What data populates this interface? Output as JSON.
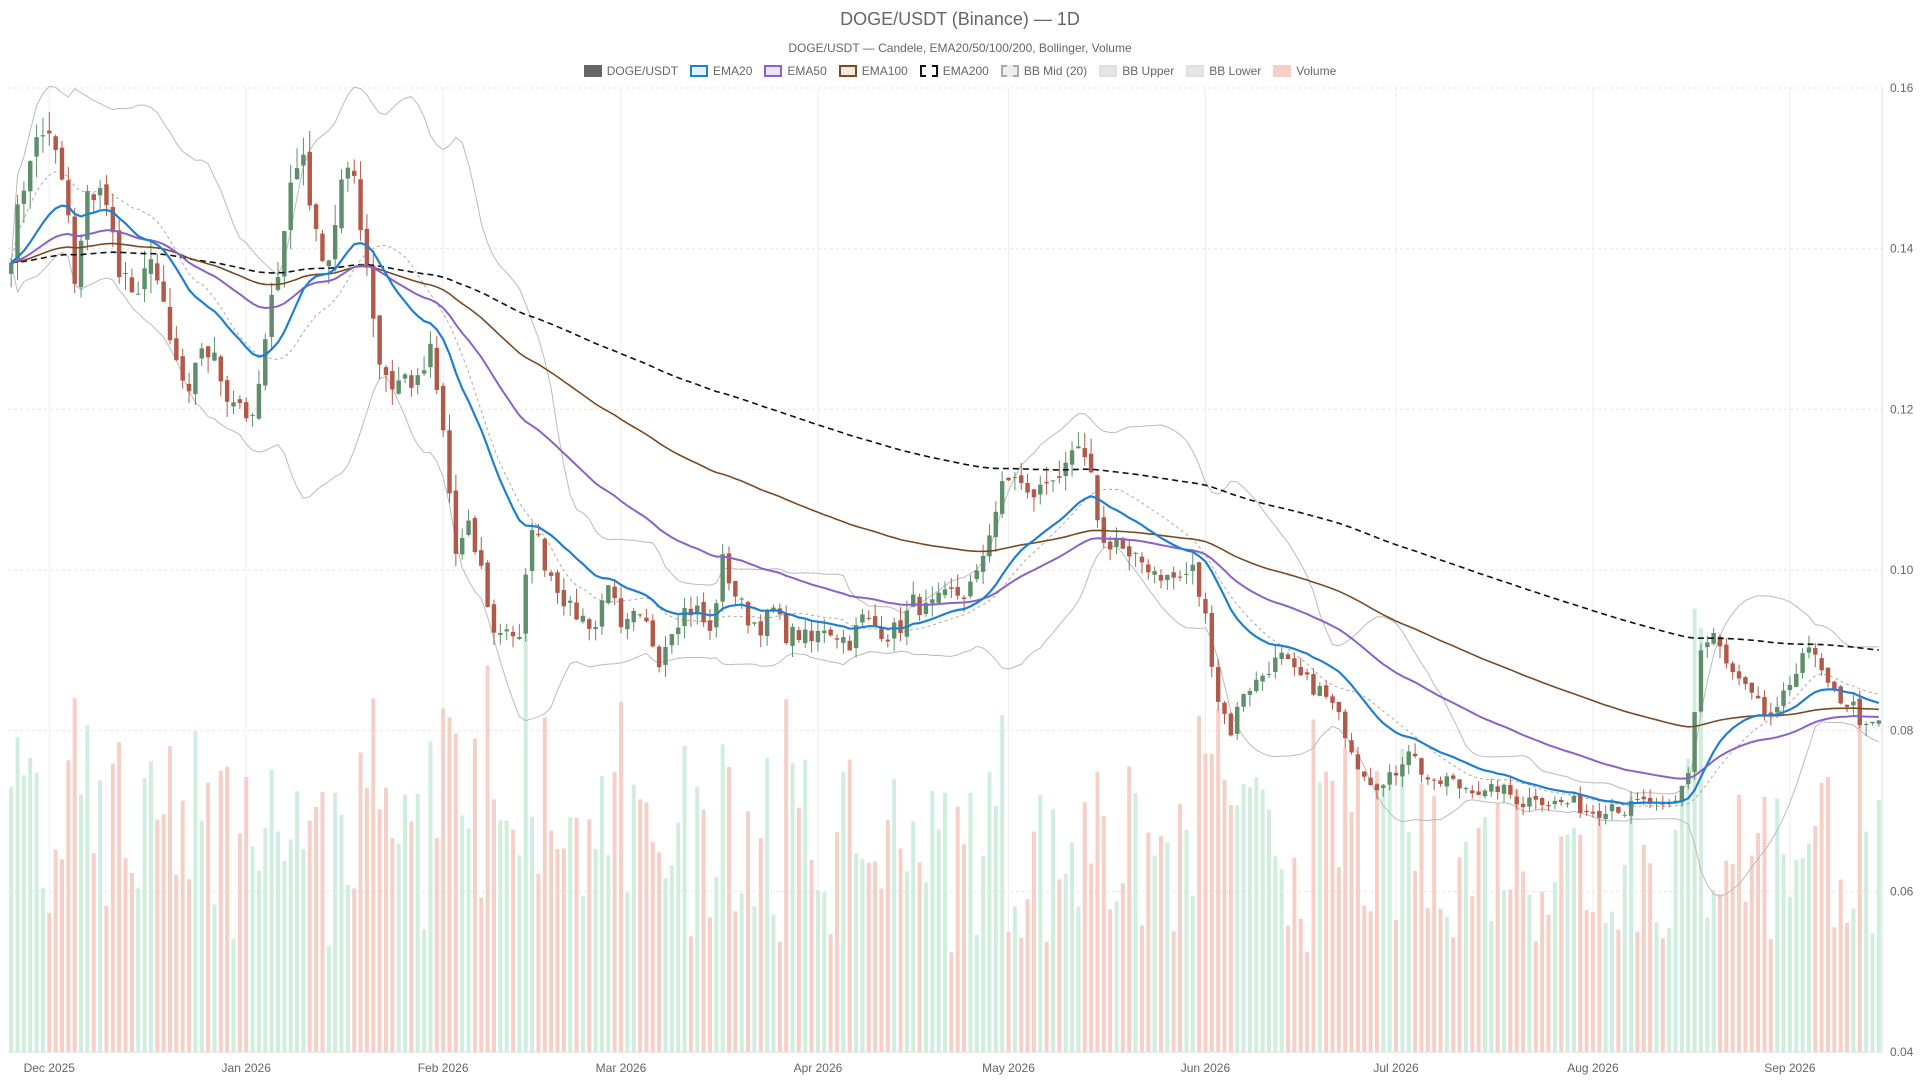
{
  "chart_data": {
    "type": "candlestick",
    "title": "DOGE/USDT (Binance) — 1D",
    "subtitle": "DOGE/USDT — Candele, EMA20/50/100/200, Bollinger, Volume",
    "legend": [
      {
        "label": "DOGE/USDT",
        "fill": "#666666",
        "border": "#666666",
        "dashed": false
      },
      {
        "label": "EMA20",
        "fill": "#e3f1fb",
        "border": "#1f7fd1",
        "dashed": false
      },
      {
        "label": "EMA50",
        "fill": "#ece3f7",
        "border": "#8a63c9",
        "dashed": false
      },
      {
        "label": "EMA100",
        "fill": "#f3e9e0",
        "border": "#7a4a23",
        "dashed": false
      },
      {
        "label": "EMA200",
        "fill": "#ffffff",
        "border": "#111111",
        "dashed": true
      },
      {
        "label": "BB Mid (20)",
        "fill": "#eeeeee",
        "border": "#aaaaaa",
        "dashed": true
      },
      {
        "label": "BB Upper",
        "fill": "#e6e6e6",
        "border": "#e0e0e0",
        "dashed": false
      },
      {
        "label": "BB Lower",
        "fill": "#e6e6e6",
        "border": "#e0e0e0",
        "dashed": false
      },
      {
        "label": "Volume",
        "fill": "#f6cfc6",
        "border": "#f6cfc6",
        "dashed": false
      }
    ],
    "y_axis": {
      "min": 0.04,
      "max": 0.16,
      "ticks": [
        "0.16",
        "0.14",
        "0.12",
        "0.10",
        "0.08",
        "0.06",
        "0.04"
      ],
      "position": "right"
    },
    "x_axis": {
      "ticks": [
        {
          "label": "Dec 2025",
          "day": 6
        },
        {
          "label": "Jan 2026",
          "day": 37
        },
        {
          "label": "Feb 2026",
          "day": 68
        },
        {
          "label": "Mar 2026",
          "day": 96
        },
        {
          "label": "Apr 2026",
          "day": 127
        },
        {
          "label": "May 2026",
          "day": 157
        },
        {
          "label": "Jun 2026",
          "day": 188
        },
        {
          "label": "Jul 2026",
          "day": 218
        },
        {
          "label": "Aug 2026",
          "day": 249
        },
        {
          "label": "Sep 2026",
          "day": 280
        }
      ]
    },
    "grid": true,
    "colors": {
      "up": "#5e8f6a",
      "down": "#b25a4a",
      "vol_up": "#cfeedd",
      "vol_down": "#f6cfc6",
      "ema20": "#1f7fd1",
      "ema50": "#8a63c9",
      "ema100": "#7a4a23",
      "ema200": "#111111",
      "bb": "#bbbbbb",
      "bbmid": "#aaaaaa"
    },
    "n_days": 295,
    "price_anchors": [
      [
        0,
        0.14
      ],
      [
        3,
        0.152
      ],
      [
        6,
        0.155
      ],
      [
        9,
        0.144
      ],
      [
        10,
        0.135
      ],
      [
        12,
        0.146
      ],
      [
        14,
        0.148
      ],
      [
        17,
        0.138
      ],
      [
        20,
        0.133
      ],
      [
        22,
        0.14
      ],
      [
        25,
        0.128
      ],
      [
        28,
        0.121
      ],
      [
        30,
        0.128
      ],
      [
        32,
        0.126
      ],
      [
        34,
        0.122
      ],
      [
        36,
        0.121
      ],
      [
        38,
        0.118
      ],
      [
        40,
        0.128
      ],
      [
        42,
        0.138
      ],
      [
        44,
        0.148
      ],
      [
        46,
        0.152
      ],
      [
        48,
        0.141
      ],
      [
        50,
        0.139
      ],
      [
        52,
        0.148
      ],
      [
        54,
        0.149
      ],
      [
        56,
        0.138
      ],
      [
        58,
        0.126
      ],
      [
        60,
        0.123
      ],
      [
        62,
        0.124
      ],
      [
        64,
        0.123
      ],
      [
        66,
        0.127
      ],
      [
        68,
        0.117
      ],
      [
        70,
        0.102
      ],
      [
        72,
        0.105
      ],
      [
        74,
        0.1
      ],
      [
        76,
        0.092
      ],
      [
        78,
        0.093
      ],
      [
        80,
        0.091
      ],
      [
        82,
        0.106
      ],
      [
        84,
        0.101
      ],
      [
        86,
        0.098
      ],
      [
        88,
        0.095
      ],
      [
        90,
        0.094
      ],
      [
        92,
        0.093
      ],
      [
        94,
        0.099
      ],
      [
        96,
        0.092
      ],
      [
        98,
        0.094
      ],
      [
        100,
        0.093
      ],
      [
        102,
        0.089
      ],
      [
        104,
        0.093
      ],
      [
        106,
        0.095
      ],
      [
        108,
        0.095
      ],
      [
        110,
        0.092
      ],
      [
        112,
        0.101
      ],
      [
        114,
        0.097
      ],
      [
        116,
        0.094
      ],
      [
        118,
        0.093
      ],
      [
        120,
        0.095
      ],
      [
        122,
        0.092
      ],
      [
        124,
        0.092
      ],
      [
        126,
        0.091
      ],
      [
        128,
        0.093
      ],
      [
        130,
        0.092
      ],
      [
        132,
        0.091
      ],
      [
        134,
        0.094
      ],
      [
        136,
        0.093
      ],
      [
        138,
        0.092
      ],
      [
        140,
        0.093
      ],
      [
        142,
        0.096
      ],
      [
        144,
        0.095
      ],
      [
        146,
        0.096
      ],
      [
        148,
        0.097
      ],
      [
        150,
        0.097
      ],
      [
        152,
        0.099
      ],
      [
        154,
        0.105
      ],
      [
        156,
        0.11
      ],
      [
        158,
        0.112
      ],
      [
        160,
        0.109
      ],
      [
        162,
        0.11
      ],
      [
        164,
        0.112
      ],
      [
        166,
        0.112
      ],
      [
        168,
        0.115
      ],
      [
        170,
        0.111
      ],
      [
        172,
        0.103
      ],
      [
        174,
        0.104
      ],
      [
        176,
        0.101
      ],
      [
        178,
        0.101
      ],
      [
        180,
        0.1
      ],
      [
        182,
        0.099
      ],
      [
        184,
        0.099
      ],
      [
        186,
        0.1
      ],
      [
        188,
        0.094
      ],
      [
        190,
        0.084
      ],
      [
        192,
        0.08
      ],
      [
        194,
        0.085
      ],
      [
        196,
        0.086
      ],
      [
        198,
        0.088
      ],
      [
        200,
        0.089
      ],
      [
        202,
        0.087
      ],
      [
        204,
        0.086
      ],
      [
        206,
        0.085
      ],
      [
        208,
        0.083
      ],
      [
        210,
        0.08
      ],
      [
        212,
        0.076
      ],
      [
        214,
        0.074
      ],
      [
        216,
        0.073
      ],
      [
        218,
        0.075
      ],
      [
        220,
        0.078
      ],
      [
        222,
        0.075
      ],
      [
        224,
        0.073
      ],
      [
        226,
        0.074
      ],
      [
        228,
        0.073
      ],
      [
        230,
        0.073
      ],
      [
        232,
        0.072
      ],
      [
        234,
        0.073
      ],
      [
        236,
        0.072
      ],
      [
        238,
        0.071
      ],
      [
        240,
        0.072
      ],
      [
        242,
        0.071
      ],
      [
        244,
        0.071
      ],
      [
        246,
        0.071
      ],
      [
        248,
        0.07
      ],
      [
        250,
        0.07
      ],
      [
        252,
        0.071
      ],
      [
        254,
        0.07
      ],
      [
        256,
        0.071
      ],
      [
        258,
        0.071
      ],
      [
        260,
        0.07
      ],
      [
        262,
        0.071
      ],
      [
        264,
        0.075
      ],
      [
        266,
        0.09
      ],
      [
        268,
        0.092
      ],
      [
        270,
        0.088
      ],
      [
        272,
        0.086
      ],
      [
        274,
        0.084
      ],
      [
        276,
        0.082
      ],
      [
        278,
        0.082
      ],
      [
        280,
        0.086
      ],
      [
        282,
        0.09
      ],
      [
        284,
        0.089
      ],
      [
        286,
        0.085
      ],
      [
        288,
        0.084
      ],
      [
        290,
        0.083
      ],
      [
        292,
        0.08
      ],
      [
        294,
        0.081
      ]
    ]
  }
}
